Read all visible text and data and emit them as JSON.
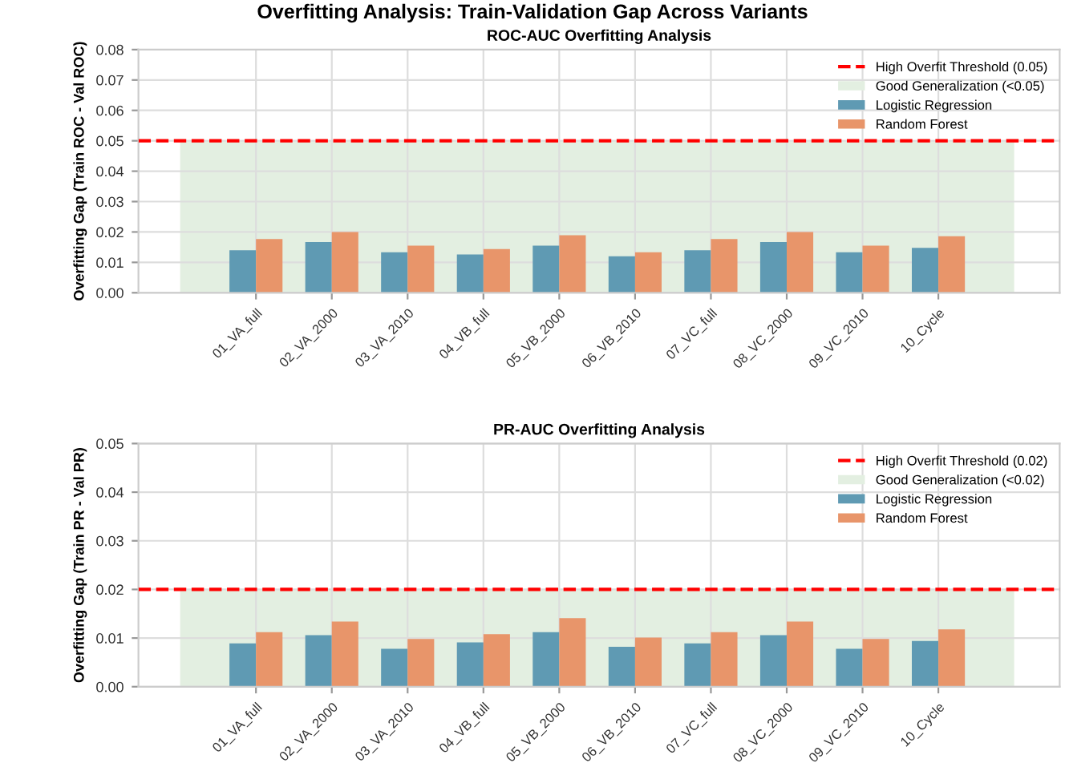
{
  "chart_data": [
    {
      "type": "bar",
      "title": "Overfitting Analysis: Train-Validation Gap Across Variants",
      "subtitle": "ROC-AUC Overfitting Analysis",
      "ylabel": "Overfitting Gap (Train ROC - Val ROC)",
      "categories": [
        "01_VA_full",
        "02_VA_2000",
        "03_VA_2010",
        "04_VB_full",
        "05_VB_2000",
        "06_VB_2010",
        "07_VC_full",
        "08_VC_2000",
        "09_VC_2010",
        "10_Cycle"
      ],
      "series": [
        {
          "name": "Logistic Regression",
          "color": "#5f9ab3",
          "values": [
            0.014,
            0.0167,
            0.0133,
            0.0126,
            0.0155,
            0.012,
            0.014,
            0.0167,
            0.0133,
            0.0148
          ]
        },
        {
          "name": "Random Forest",
          "color": "#e8956a",
          "values": [
            0.0177,
            0.02,
            0.0155,
            0.0144,
            0.0189,
            0.0133,
            0.0177,
            0.02,
            0.0155,
            0.0186
          ]
        }
      ],
      "ylim": [
        0,
        0.08
      ],
      "yticks": [
        {
          "value": 0,
          "label": "0.00"
        },
        {
          "value": 0.01,
          "label": "0.01"
        },
        {
          "value": 0.02,
          "label": "0.02"
        },
        {
          "value": 0.03,
          "label": "0.03"
        },
        {
          "value": 0.04,
          "label": "0.04"
        },
        {
          "value": 0.05,
          "label": "0.05"
        },
        {
          "value": 0.06,
          "label": "0.06"
        },
        {
          "value": 0.07,
          "label": "0.07"
        },
        {
          "value": 0.08,
          "label": "0.08"
        }
      ],
      "ref_lines": [
        {
          "axis": "y",
          "value": 0.05,
          "label": "High Overfit Threshold (0.05)",
          "color": "#ff0000",
          "line_style": "dashed"
        }
      ],
      "bands": [
        {
          "axis": "y",
          "from": 0,
          "to": 0.05,
          "label": "Good Generalization (<0.05)",
          "color": "#e3efe1"
        }
      ],
      "grid": true,
      "legend": "top right"
    },
    {
      "type": "bar",
      "title": "PR-AUC Overfitting Analysis",
      "ylabel": "Overfitting Gap (Train PR - Val PR)",
      "categories": [
        "01_VA_full",
        "02_VA_2000",
        "03_VA_2010",
        "04_VB_full",
        "05_VB_2000",
        "06_VB_2010",
        "07_VC_full",
        "08_VC_2000",
        "09_VC_2010",
        "10_Cycle"
      ],
      "series": [
        {
          "name": "Logistic Regression",
          "color": "#5f9ab3",
          "values": [
            0.0089,
            0.0106,
            0.0078,
            0.0091,
            0.0112,
            0.0082,
            0.0089,
            0.0106,
            0.0078,
            0.0094
          ]
        },
        {
          "name": "Random Forest",
          "color": "#e8956a",
          "values": [
            0.0112,
            0.0134,
            0.0098,
            0.0108,
            0.0141,
            0.0101,
            0.0112,
            0.0134,
            0.0098,
            0.0118
          ]
        }
      ],
      "ylim": [
        0,
        0.05
      ],
      "yticks": [
        {
          "value": 0,
          "label": "0.00"
        },
        {
          "value": 0.01,
          "label": "0.01"
        },
        {
          "value": 0.02,
          "label": "0.02"
        },
        {
          "value": 0.03,
          "label": "0.03"
        },
        {
          "value": 0.04,
          "label": "0.04"
        },
        {
          "value": 0.05,
          "label": "0.05"
        }
      ],
      "ref_lines": [
        {
          "axis": "y",
          "value": 0.02,
          "label": "High Overfit Threshold (0.02)",
          "color": "#ff0000",
          "line_style": "dashed"
        }
      ],
      "bands": [
        {
          "axis": "y",
          "from": 0,
          "to": 0.02,
          "label": "Good Generalization (<0.02)",
          "color": "#e3efe1"
        }
      ],
      "grid": true,
      "legend": "top right"
    }
  ]
}
